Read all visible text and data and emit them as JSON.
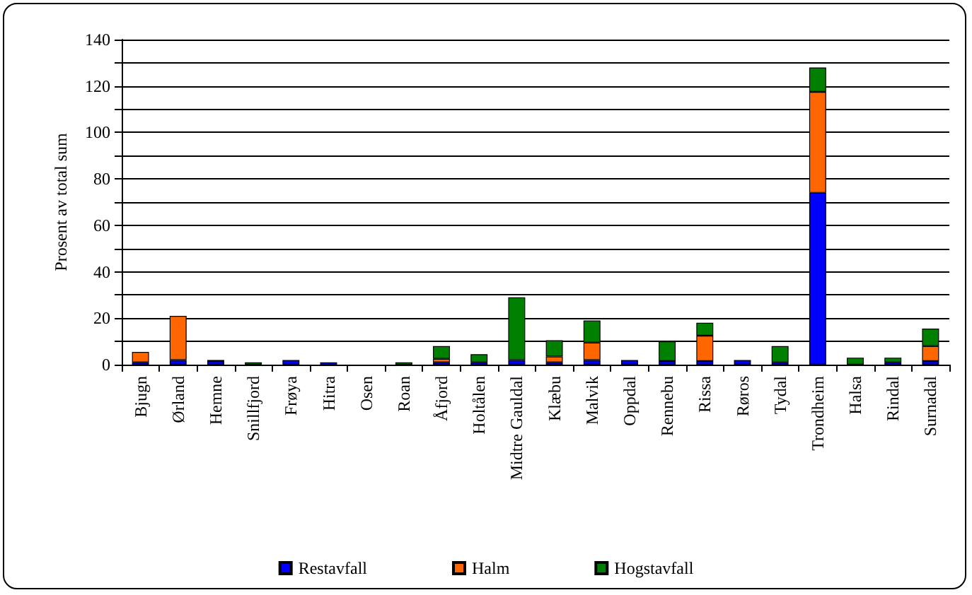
{
  "chart_data": {
    "type": "bar",
    "stacked": true,
    "ylabel": "Prosent av total sum",
    "categories": [
      "Bjugn",
      "Ørland",
      "Hemne",
      "Snillfjord",
      "Frøya",
      "Hitra",
      "Osen",
      "Roan",
      "Åfjord",
      "Holtålen",
      "Midtre Gauldal",
      "Klæbu",
      "Malvik",
      "Oppdal",
      "Rennebu",
      "Rissa",
      "Røros",
      "Tydal",
      "Trondheim",
      "Halsa",
      "Rindal",
      "Surnadal"
    ],
    "series": [
      {
        "name": "Restavfall",
        "color": "#0000ff",
        "values": [
          1,
          2,
          1.5,
          null,
          2,
          1,
          null,
          null,
          1,
          1,
          2,
          1,
          2,
          2,
          1.5,
          1.5,
          2,
          1,
          74,
          null,
          1,
          1.5
        ]
      },
      {
        "name": "Halm",
        "color": "#ff6600",
        "values": [
          4.5,
          19,
          null,
          null,
          null,
          null,
          null,
          null,
          1.5,
          null,
          null,
          2.5,
          7.5,
          null,
          null,
          11,
          null,
          null,
          43.5,
          null,
          null,
          6.5
        ]
      },
      {
        "name": "Hogstavfall",
        "color": "#008000",
        "values": [
          null,
          null,
          0.5,
          1,
          null,
          null,
          null,
          1,
          5.5,
          3.5,
          27,
          7,
          9.5,
          null,
          8.5,
          5.5,
          null,
          7,
          10.5,
          3,
          2,
          7.5
        ]
      }
    ],
    "ylim": [
      0,
      140
    ],
    "yticks": [
      0,
      {
        "value": 10,
        "label": null
      },
      20,
      {
        "value": 30,
        "label": null
      },
      40,
      {
        "value": 50,
        "label": null
      },
      60,
      {
        "value": 70,
        "label": null
      },
      80,
      {
        "value": 90,
        "label": null
      },
      100,
      {
        "value": 110,
        "label": null
      },
      120,
      {
        "value": 130,
        "label": null
      },
      140
    ],
    "grid": "y",
    "legend": "bottom"
  }
}
